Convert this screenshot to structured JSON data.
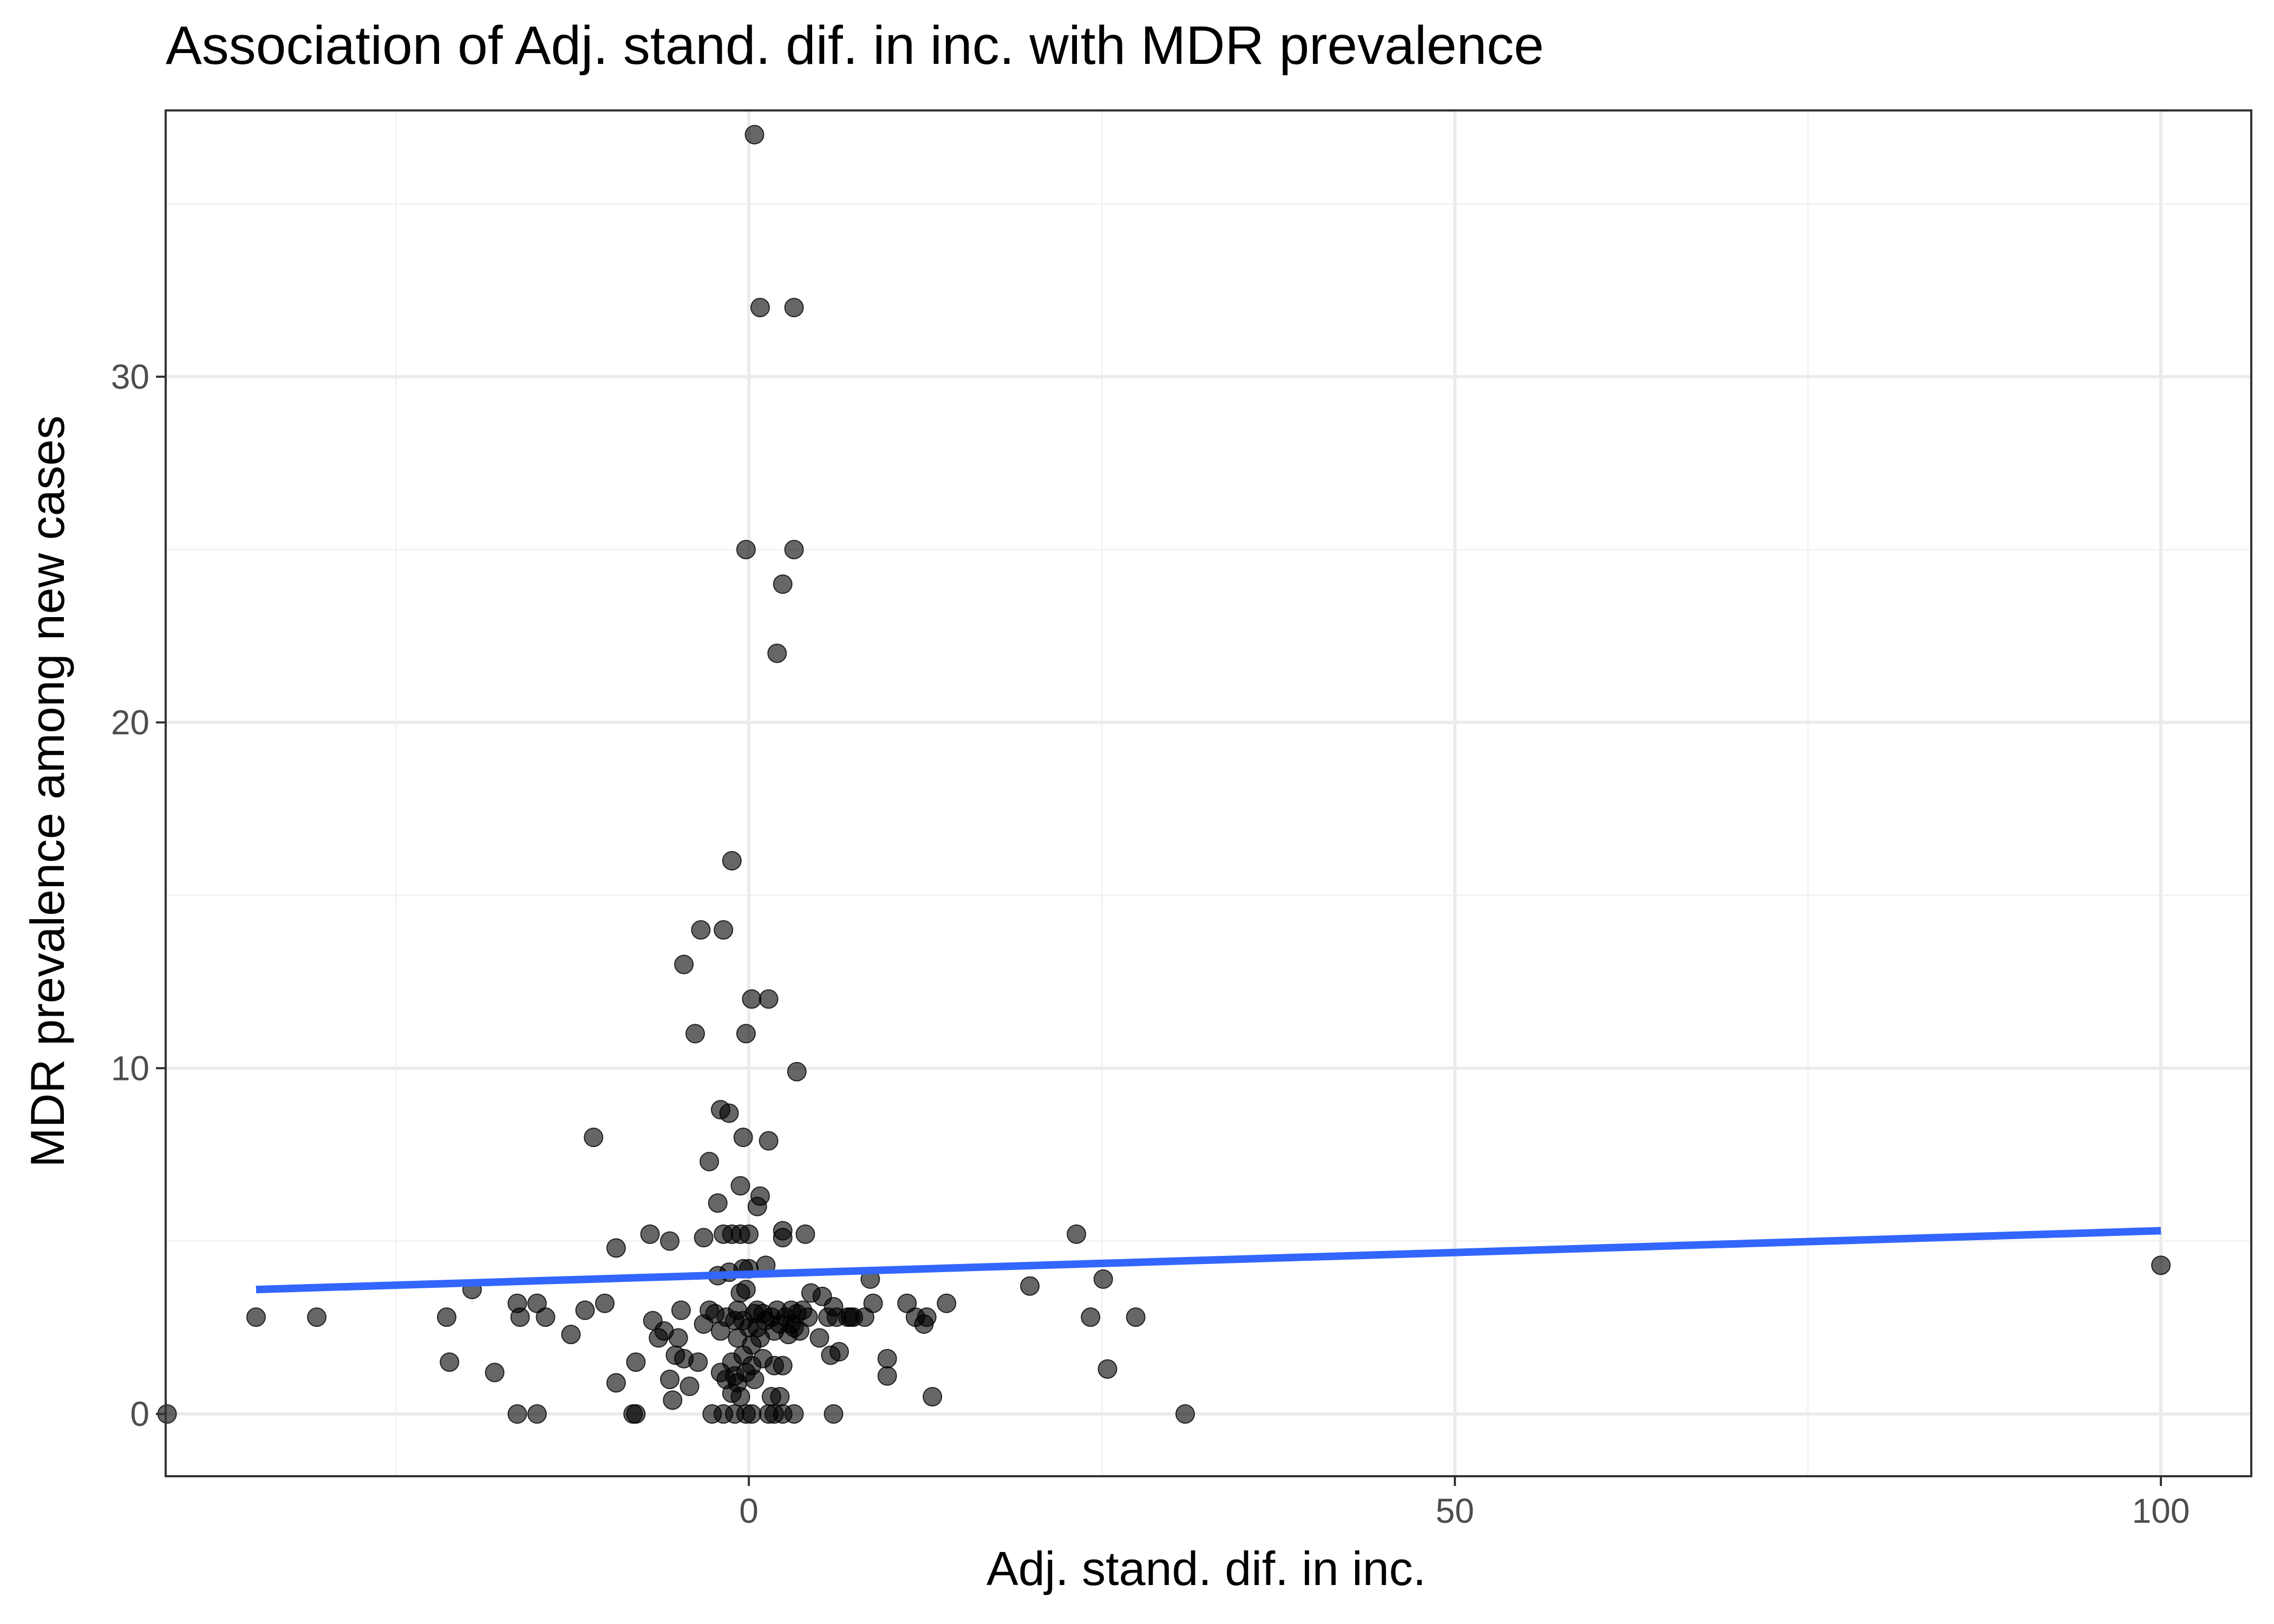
{
  "chart_data": {
    "type": "scatter",
    "title": "Association of Adj. stand. dif. in inc. with MDR prevalence",
    "xlabel": "Adj. stand. dif. in inc.",
    "ylabel": "MDR prevalence among new cases",
    "xlim": [
      -41.3,
      106.4
    ],
    "ylim": [
      -1.8,
      37.7
    ],
    "x_ticks": [
      0,
      50,
      100
    ],
    "x_tick_labels": [
      "0",
      "50",
      "100"
    ],
    "y_ticks": [
      0,
      10,
      20,
      30
    ],
    "y_tick_labels": [
      "0",
      "10",
      "20",
      "30"
    ],
    "x_minor_ticks": [
      -25,
      25,
      75
    ],
    "y_minor_ticks": [
      5,
      15,
      25,
      35
    ],
    "grid": true,
    "trend_line": {
      "type": "linear",
      "x": [
        -34.9,
        100
      ],
      "y": [
        3.6,
        5.3
      ],
      "color": "#3366ff"
    },
    "point_color": "#000000",
    "points": [
      [
        -41.2,
        0
      ],
      [
        -34.9,
        2.8
      ],
      [
        -30.6,
        2.8
      ],
      [
        -19.6,
        3.6
      ],
      [
        -21.4,
        2.8
      ],
      [
        -21.2,
        1.5
      ],
      [
        -18.0,
        1.2
      ],
      [
        -16.4,
        3.2
      ],
      [
        -16.2,
        2.8
      ],
      [
        -15.0,
        3.2
      ],
      [
        -14.4,
        2.8
      ],
      [
        -16.4,
        0
      ],
      [
        -15.0,
        0
      ],
      [
        -12.6,
        2.3
      ],
      [
        -11.6,
        3.0
      ],
      [
        -10.2,
        3.2
      ],
      [
        -11.0,
        8.0
      ],
      [
        -9.4,
        0.9
      ],
      [
        -9.4,
        4.8
      ],
      [
        -8.2,
        0
      ],
      [
        -8.0,
        0
      ],
      [
        -8.0,
        1.5
      ],
      [
        -7.0,
        5.2
      ],
      [
        -6.8,
        2.7
      ],
      [
        -6.4,
        2.2
      ],
      [
        -6.0,
        2.4
      ],
      [
        -5.6,
        1.0
      ],
      [
        -5.6,
        5.0
      ],
      [
        -5.4,
        0.4
      ],
      [
        -5.2,
        1.7
      ],
      [
        -5.0,
        2.2
      ],
      [
        -4.8,
        3.0
      ],
      [
        -4.6,
        1.6
      ],
      [
        -4.6,
        13.0
      ],
      [
        -4.2,
        0.8
      ],
      [
        -3.8,
        11.0
      ],
      [
        -3.6,
        1.5
      ],
      [
        -3.4,
        14.0
      ],
      [
        -3.2,
        2.6
      ],
      [
        -3.2,
        5.1
      ],
      [
        -2.8,
        3.0
      ],
      [
        -2.8,
        7.3
      ],
      [
        -2.6,
        0
      ],
      [
        -2.4,
        2.9
      ],
      [
        -2.2,
        6.1
      ],
      [
        -2.2,
        4.0
      ],
      [
        -2.0,
        2.4
      ],
      [
        -2.0,
        1.2
      ],
      [
        -2.0,
        8.8
      ],
      [
        -1.8,
        14.0
      ],
      [
        -1.8,
        5.2
      ],
      [
        -1.8,
        0
      ],
      [
        -1.6,
        2.8
      ],
      [
        -1.6,
        1.0
      ],
      [
        -1.4,
        8.7
      ],
      [
        -1.4,
        4.1
      ],
      [
        -1.2,
        16.0
      ],
      [
        -1.2,
        0.6
      ],
      [
        -1.2,
        1.5
      ],
      [
        -1.2,
        5.2
      ],
      [
        -1.0,
        2.7
      ],
      [
        -1.0,
        0
      ],
      [
        -1.0,
        1.1
      ],
      [
        -0.8,
        3.0
      ],
      [
        -0.8,
        2.2
      ],
      [
        -0.8,
        0.9
      ],
      [
        -0.6,
        5.2
      ],
      [
        -0.6,
        6.6
      ],
      [
        -0.6,
        3.5
      ],
      [
        -0.6,
        0.5
      ],
      [
        -0.4,
        2.7
      ],
      [
        -0.4,
        1.7
      ],
      [
        -0.4,
        4.2
      ],
      [
        -0.4,
        8.0
      ],
      [
        -0.2,
        25.0
      ],
      [
        -0.2,
        3.6
      ],
      [
        -0.2,
        1.2
      ],
      [
        -0.2,
        0
      ],
      [
        -0.2,
        11.0
      ],
      [
        0.0,
        5.2
      ],
      [
        0.0,
        2.5
      ],
      [
        0.0,
        4.2
      ],
      [
        0.2,
        12.0
      ],
      [
        0.2,
        2.0
      ],
      [
        0.2,
        0
      ],
      [
        0.2,
        1.4
      ],
      [
        0.4,
        37.0
      ],
      [
        0.4,
        2.9
      ],
      [
        0.4,
        1.0
      ],
      [
        0.6,
        6.0
      ],
      [
        0.6,
        3.0
      ],
      [
        0.6,
        2.5
      ],
      [
        0.8,
        6.3
      ],
      [
        0.8,
        2.2
      ],
      [
        0.8,
        32.0
      ],
      [
        1.0,
        2.9
      ],
      [
        1.0,
        1.6
      ],
      [
        1.2,
        4.3
      ],
      [
        1.2,
        2.7
      ],
      [
        1.4,
        12.0
      ],
      [
        1.4,
        7.9
      ],
      [
        1.4,
        0
      ],
      [
        1.6,
        2.8
      ],
      [
        1.6,
        0.5
      ],
      [
        1.8,
        2.4
      ],
      [
        1.8,
        0
      ],
      [
        1.8,
        1.4
      ],
      [
        2.0,
        22.0
      ],
      [
        2.0,
        3.0
      ],
      [
        2.2,
        0.5
      ],
      [
        2.2,
        2.6
      ],
      [
        2.4,
        24.0
      ],
      [
        2.4,
        1.4
      ],
      [
        2.4,
        5.1
      ],
      [
        2.4,
        5.3
      ],
      [
        2.4,
        0
      ],
      [
        2.6,
        2.8
      ],
      [
        2.8,
        2.3
      ],
      [
        3.0,
        2.6
      ],
      [
        3.0,
        3.0
      ],
      [
        3.2,
        32.0
      ],
      [
        3.2,
        25.0
      ],
      [
        3.2,
        0
      ],
      [
        3.2,
        2.5
      ],
      [
        3.4,
        2.9
      ],
      [
        3.4,
        9.9
      ],
      [
        3.6,
        2.4
      ],
      [
        3.8,
        3.0
      ],
      [
        4.0,
        5.2
      ],
      [
        4.2,
        2.8
      ],
      [
        4.4,
        3.5
      ],
      [
        5.0,
        2.2
      ],
      [
        5.2,
        3.4
      ],
      [
        5.6,
        2.8
      ],
      [
        5.8,
        1.7
      ],
      [
        6.0,
        3.1
      ],
      [
        6.0,
        0
      ],
      [
        6.2,
        2.8
      ],
      [
        6.4,
        1.8
      ],
      [
        7.0,
        2.8
      ],
      [
        7.2,
        2.8
      ],
      [
        7.4,
        2.8
      ],
      [
        8.2,
        2.8
      ],
      [
        8.6,
        3.9
      ],
      [
        8.8,
        3.2
      ],
      [
        9.8,
        1.6
      ],
      [
        9.8,
        1.1
      ],
      [
        11.2,
        3.2
      ],
      [
        11.8,
        2.8
      ],
      [
        12.4,
        2.6
      ],
      [
        12.6,
        2.8
      ],
      [
        13.0,
        0.5
      ],
      [
        14.0,
        3.2
      ],
      [
        19.9,
        3.7
      ],
      [
        23.2,
        5.2
      ],
      [
        24.2,
        2.8
      ],
      [
        25.1,
        3.9
      ],
      [
        25.4,
        1.3
      ],
      [
        27.4,
        2.8
      ],
      [
        30.9,
        0
      ],
      [
        100.0,
        4.3
      ]
    ]
  }
}
